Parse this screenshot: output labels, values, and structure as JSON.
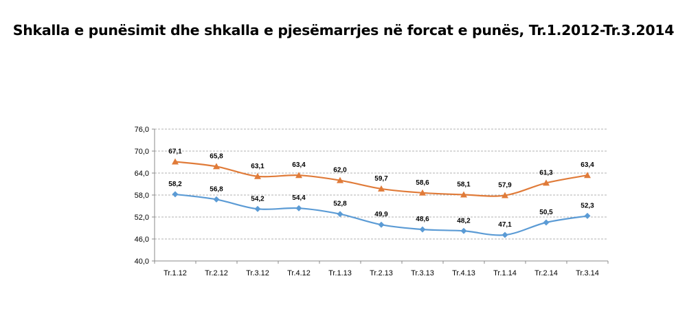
{
  "chart_data": {
    "type": "line",
    "title": "Shkalla e punësimit dhe shkalla e pjesëmarrjes në forcat e punës, Tr.1.2012-Tr.3.2014",
    "categories": [
      "Tr.1.12",
      "Tr.2.12",
      "Tr.3.12",
      "Tr.4.12",
      "Tr.1.13",
      "Tr.2.13",
      "Tr.3.13",
      "Tr.4.13",
      "Tr.1.14",
      "Tr.2.14",
      "Tr.3.14"
    ],
    "series": [
      {
        "values": [
          67.1,
          65.8,
          63.1,
          63.4,
          62.0,
          59.7,
          58.6,
          58.1,
          57.9,
          61.3,
          63.4
        ],
        "color": "#E07B39",
        "marker": "triangle",
        "labels": [
          "67,1",
          "65,8",
          "63,1",
          "63,4",
          "62,0",
          "59,7",
          "58,6",
          "58,1",
          "57,9",
          "61,3",
          "63,4"
        ]
      },
      {
        "values": [
          58.2,
          56.8,
          54.2,
          54.4,
          52.8,
          49.9,
          48.6,
          48.2,
          47.1,
          50.5,
          52.3
        ],
        "color": "#5B9BD5",
        "marker": "diamond",
        "labels": [
          "58,2",
          "56,8",
          "54,2",
          "54,4",
          "52,8",
          "49,9",
          "48,6",
          "48,2",
          "47,1",
          "50,5",
          "52,3"
        ]
      }
    ],
    "ylim": [
      40,
      76
    ],
    "yticks": [
      40,
      46,
      52,
      58,
      64,
      70,
      76
    ],
    "ytick_labels": [
      "40,0",
      "46,0",
      "52,0",
      "58,0",
      "64,0",
      "70,0",
      "76,0"
    ],
    "grid": true,
    "legend": "none",
    "xlabel": "",
    "ylabel": ""
  }
}
